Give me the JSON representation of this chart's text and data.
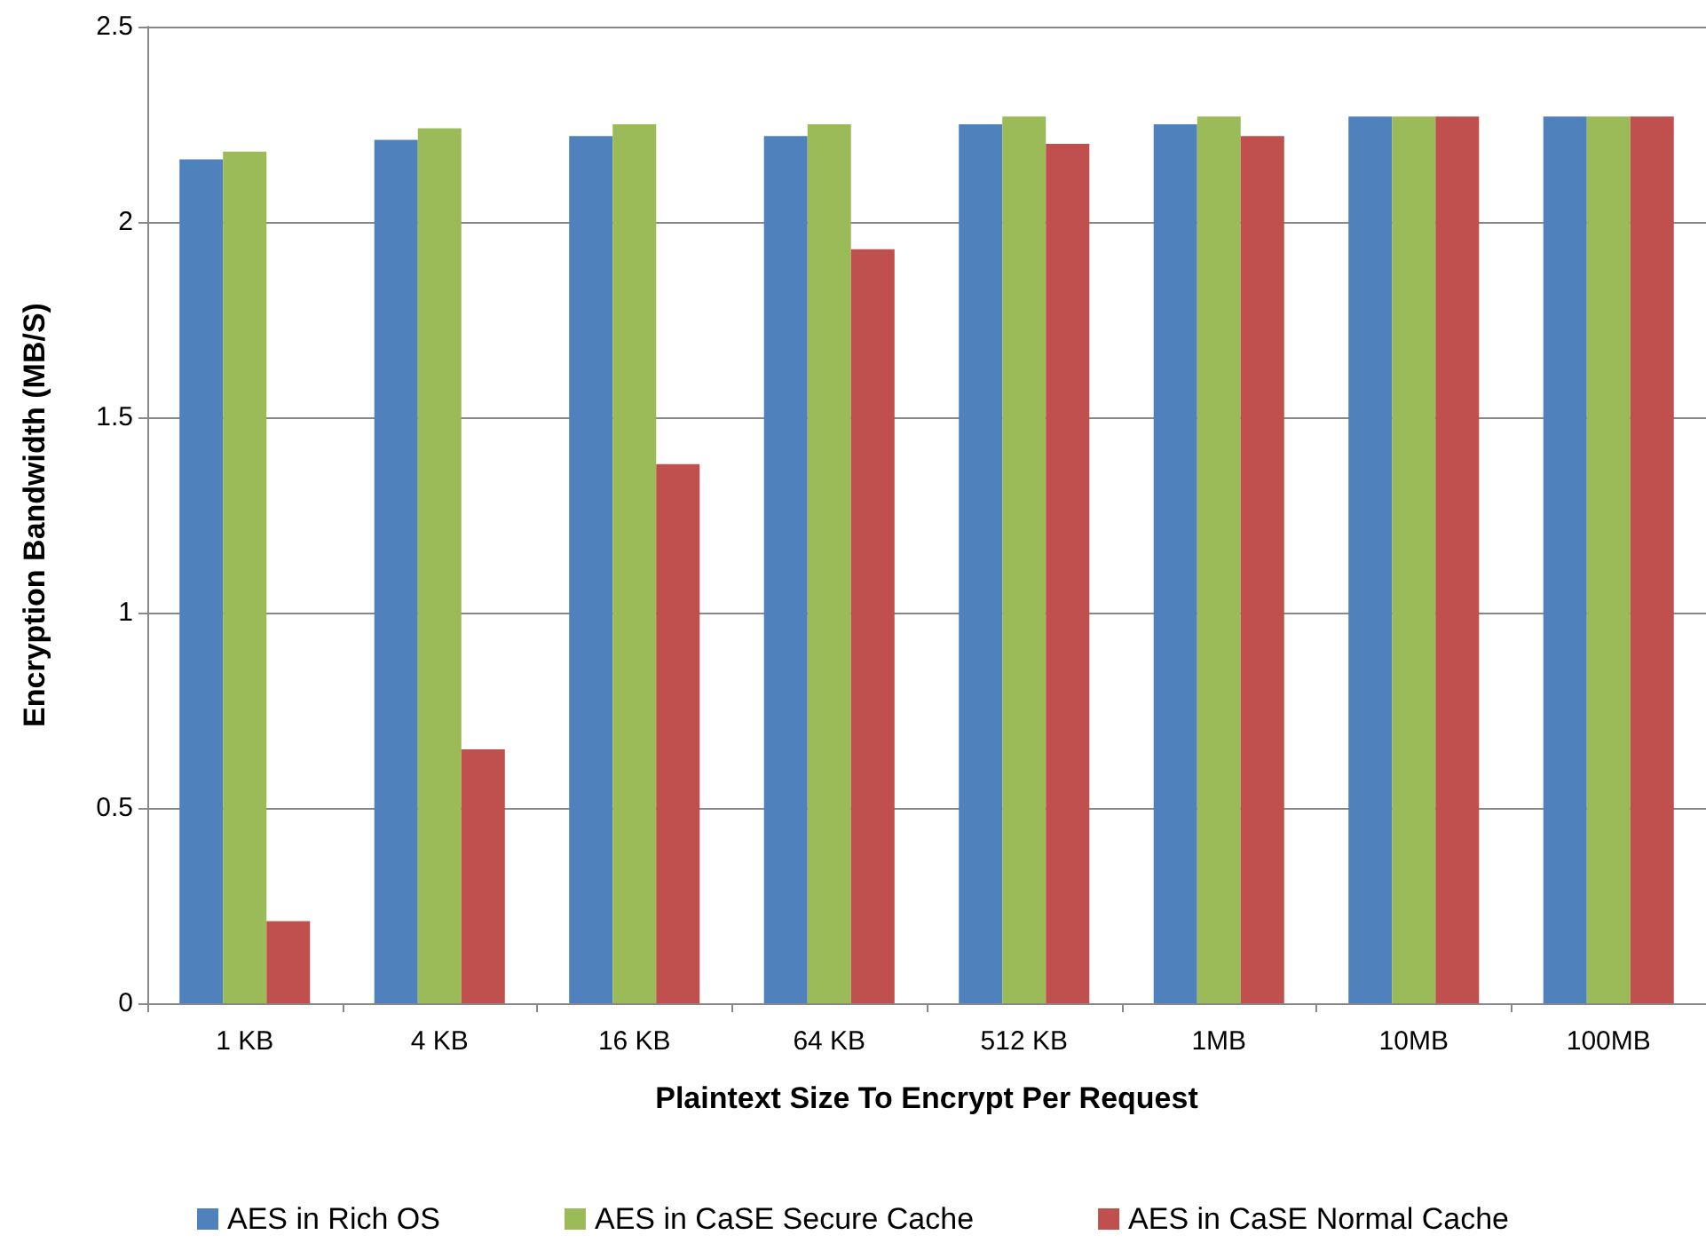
{
  "chart_data": {
    "type": "bar",
    "xlabel": "Plaintext Size To Encrypt Per Request",
    "ylabel": "Encryption Bandwidth (MB/S)",
    "categories": [
      "1 KB",
      "4 KB",
      "16 KB",
      "64 KB",
      "512 KB",
      "1MB",
      "10MB",
      "100MB"
    ],
    "series": [
      {
        "name": "AES in Rich OS",
        "color": "#4f81bd",
        "values": [
          2.16,
          2.21,
          2.22,
          2.22,
          2.25,
          2.25,
          2.27,
          2.27
        ]
      },
      {
        "name": "AES in CaSE Secure Cache",
        "color": "#9bbb59",
        "values": [
          2.18,
          2.24,
          2.25,
          2.25,
          2.27,
          2.27,
          2.27,
          2.27
        ]
      },
      {
        "name": "AES in CaSE Normal Cache",
        "color": "#c0504d",
        "values": [
          0.21,
          0.65,
          1.38,
          1.93,
          2.2,
          2.22,
          2.27,
          2.27
        ]
      }
    ],
    "ylim": [
      0,
      2.5
    ],
    "yticks": [
      0,
      0.5,
      1,
      1.5,
      2,
      2.5
    ],
    "grid": "y",
    "legend": "bottom"
  }
}
